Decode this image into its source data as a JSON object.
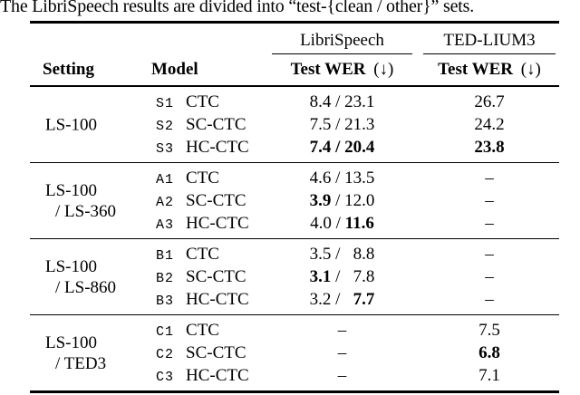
{
  "caption": "The LibriSpeech results are divided into “test-{clean / other}” sets.",
  "table": {
    "group_headers": [
      {
        "label": "LibriSpeech"
      },
      {
        "label": "TED-LIUM3"
      }
    ],
    "column_headers": {
      "setting": "Setting",
      "model": "Model"
    },
    "wer_headers": [
      {
        "label": "Test WER",
        "arrow": "(↓)"
      },
      {
        "label": "Test WER",
        "arrow": "(↓)"
      }
    ],
    "blocks": [
      {
        "setting_lines": [
          "LS-100"
        ],
        "rows": [
          {
            "id": "S1",
            "model": "CTC",
            "libri": [
              {
                "t": "8.4 / 23.1",
                "b": false
              }
            ],
            "ted": {
              "t": "26.7",
              "b": false
            }
          },
          {
            "id": "S2",
            "model": "SC-CTC",
            "libri": [
              {
                "t": "7.5 / 21.3",
                "b": false
              }
            ],
            "ted": {
              "t": "24.2",
              "b": false
            }
          },
          {
            "id": "S3",
            "model": "HC-CTC",
            "libri": [
              {
                "t": "7.4 / 20.4",
                "b": true
              }
            ],
            "ted": {
              "t": "23.8",
              "b": true
            }
          }
        ]
      },
      {
        "setting_lines": [
          "LS-100",
          "/ LS-360"
        ],
        "rows": [
          {
            "id": "A1",
            "model": "CTC",
            "libri": [
              {
                "t": "4.6 / 13.5",
                "b": false
              }
            ],
            "ted": {
              "t": "–",
              "b": false
            }
          },
          {
            "id": "A2",
            "model": "SC-CTC",
            "libri": [
              {
                "t": "3.9",
                "b": true
              },
              {
                "t": " / 12.0",
                "b": false
              }
            ],
            "ted": {
              "t": "–",
              "b": false
            }
          },
          {
            "id": "A3",
            "model": "HC-CTC",
            "libri": [
              {
                "t": "4.0 / ",
                "b": false
              },
              {
                "t": "11.6",
                "b": true
              }
            ],
            "ted": {
              "t": "–",
              "b": false
            }
          }
        ]
      },
      {
        "setting_lines": [
          "LS-100",
          "/ LS-860"
        ],
        "rows": [
          {
            "id": "B1",
            "model": "CTC",
            "libri": [
              {
                "t": "3.5 /   8.8",
                "b": false
              }
            ],
            "ted": {
              "t": "–",
              "b": false
            }
          },
          {
            "id": "B2",
            "model": "SC-CTC",
            "libri": [
              {
                "t": "3.1",
                "b": true
              },
              {
                "t": " /   7.8",
                "b": false
              }
            ],
            "ted": {
              "t": "–",
              "b": false
            }
          },
          {
            "id": "B3",
            "model": "HC-CTC",
            "libri": [
              {
                "t": "3.2 /   ",
                "b": false
              },
              {
                "t": "7.7",
                "b": true
              }
            ],
            "ted": {
              "t": "–",
              "b": false
            }
          }
        ]
      },
      {
        "setting_lines": [
          "LS-100",
          "/ TED3"
        ],
        "rows": [
          {
            "id": "C1",
            "model": "CTC",
            "libri": [
              {
                "t": "–",
                "b": false
              }
            ],
            "ted": {
              "t": "7.5",
              "b": false
            }
          },
          {
            "id": "C2",
            "model": "SC-CTC",
            "libri": [
              {
                "t": "–",
                "b": false
              }
            ],
            "ted": {
              "t": "6.8",
              "b": true
            }
          },
          {
            "id": "C3",
            "model": "HC-CTC",
            "libri": [
              {
                "t": "–",
                "b": false
              }
            ],
            "ted": {
              "t": "7.1",
              "b": false
            }
          }
        ]
      }
    ]
  }
}
